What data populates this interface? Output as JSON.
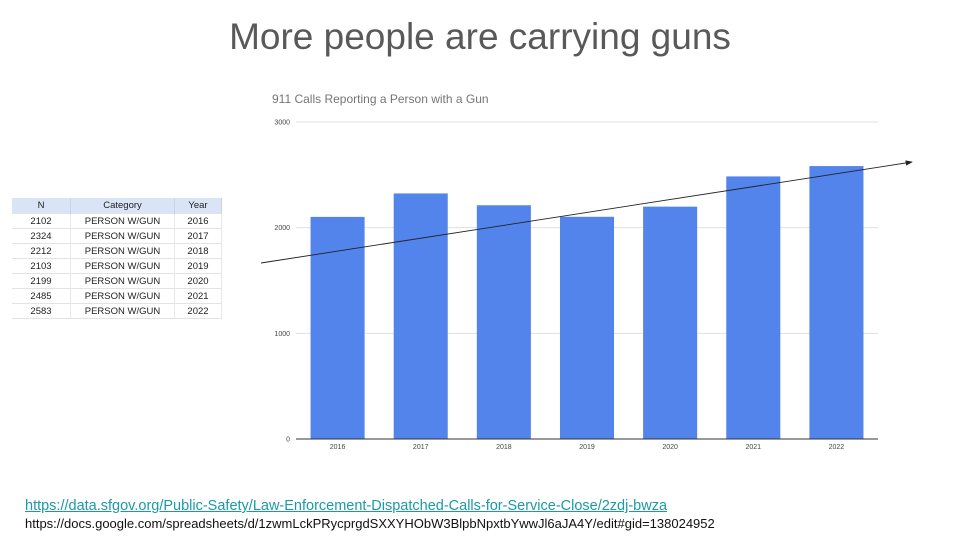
{
  "slide": {
    "title": "More people are carrying guns"
  },
  "table": {
    "headers": [
      "N",
      "Category",
      "Year"
    ],
    "rows": [
      [
        "2102",
        "PERSON W/GUN",
        "2016"
      ],
      [
        "2324",
        "PERSON W/GUN",
        "2017"
      ],
      [
        "2212",
        "PERSON W/GUN",
        "2018"
      ],
      [
        "2103",
        "PERSON W/GUN",
        "2019"
      ],
      [
        "2199",
        "PERSON W/GUN",
        "2020"
      ],
      [
        "2485",
        "PERSON W/GUN",
        "2021"
      ],
      [
        "2583",
        "PERSON W/GUN",
        "2022"
      ]
    ]
  },
  "chart_data": {
    "type": "bar",
    "title": "911 Calls Reporting a Person with a Gun",
    "categories": [
      "2016",
      "2017",
      "2018",
      "2019",
      "2020",
      "2021",
      "2022"
    ],
    "values": [
      2102,
      2324,
      2212,
      2103,
      2199,
      2485,
      2583
    ],
    "ylim": [
      0,
      3000
    ],
    "yticks": [
      0,
      1000,
      2000,
      3000
    ],
    "grid": true,
    "legend": "none",
    "bar_color": "#5284eb",
    "trend_arrow": true
  },
  "links": {
    "source_url": "https://data.sfgov.org/Public-Safety/Law-Enforcement-Dispatched-Calls-for-Service-Close/2zdj-bwza",
    "sheet_url": "https://docs.google.com/spreadsheets/d/1zwmLckPRycprgdSXXYHObW3BlpbNpxtbYwwJl6aJA4Y/edit#gid=138024952"
  }
}
